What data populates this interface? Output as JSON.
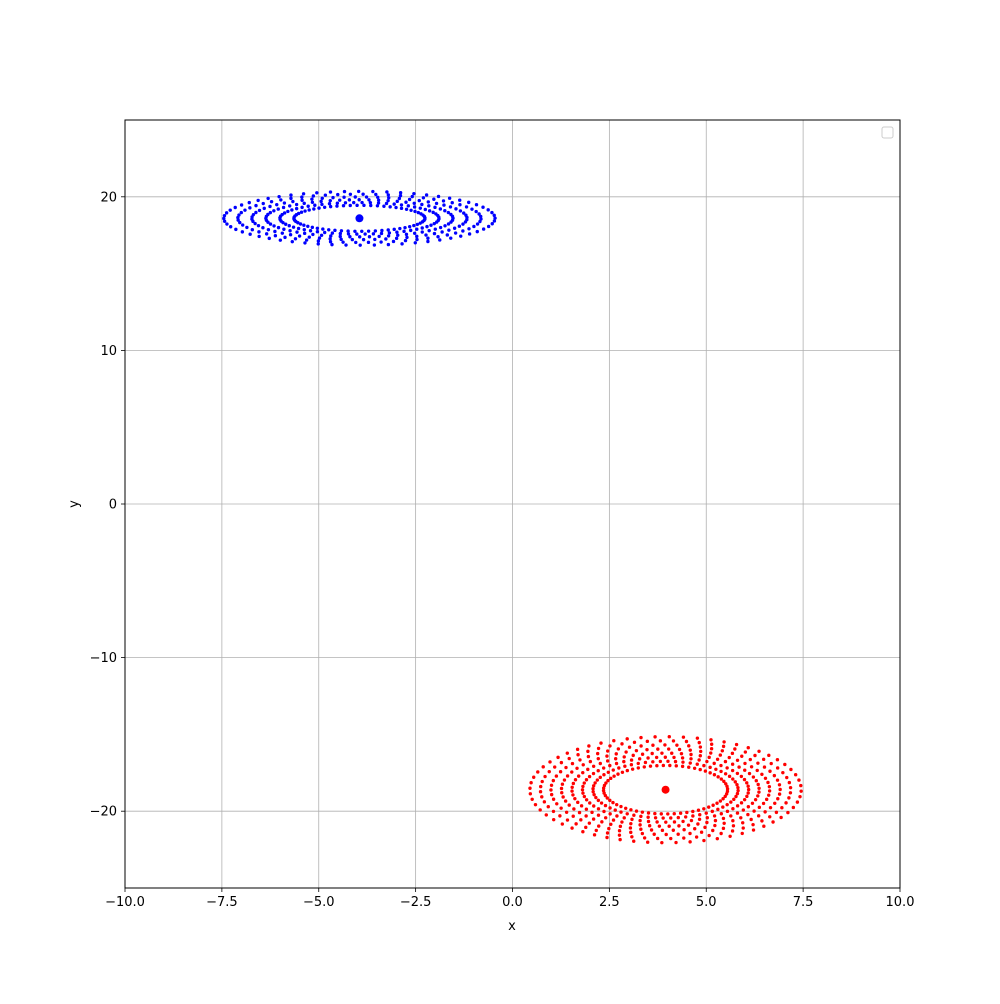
{
  "chart_data": {
    "type": "scatter",
    "title": "",
    "xlabel": "x",
    "ylabel": "y",
    "xlim": [
      -10,
      10
    ],
    "ylim": [
      -25,
      25
    ],
    "xticks": [
      -10,
      -7.5,
      -5,
      -2.5,
      0,
      2.5,
      5,
      7.5,
      10
    ],
    "xtick_labels": [
      "−10.0",
      "−7.5",
      "−5.0",
      "−2.5",
      "0.0",
      "2.5",
      "5.0",
      "7.5",
      "10.0"
    ],
    "yticks": [
      -20,
      -10,
      0,
      10,
      20
    ],
    "ytick_labels": [
      "−20",
      "−10",
      "0",
      "10",
      "20"
    ],
    "grid": true,
    "legend": {
      "placement": "top-right",
      "entries": []
    },
    "series": [
      {
        "color": "#0000ff",
        "center": [
          -3.95,
          18.6
        ],
        "shape": "elliptical ring of points",
        "x_half_width": 3.5,
        "y_half_height": 1.75,
        "rings": 6,
        "points_per_ring": 60
      },
      {
        "color": "#ff0000",
        "center": [
          3.95,
          -18.6
        ],
        "shape": "elliptical ring of points",
        "x_half_width": 3.5,
        "y_half_height": 3.45,
        "rings": 8,
        "points_per_ring": 60
      }
    ]
  }
}
